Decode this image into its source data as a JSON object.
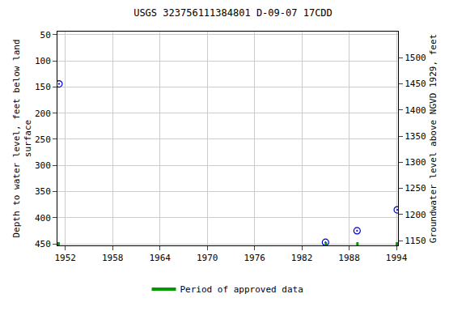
{
  "chart_data": {
    "type": "scatter",
    "title": "USGS 323756111384801 D-09-07 17CDD",
    "ylabel": [
      "Depth to water level, feet below land",
      "surface"
    ],
    "y2label": "Groundwater level above NGVD 1929, feet",
    "xlim": [
      1951,
      1994.2
    ],
    "xticks": [
      1952,
      1958,
      1964,
      1970,
      1976,
      1982,
      1988,
      1994
    ],
    "ylim": [
      453,
      44
    ],
    "yticks": [
      50,
      100,
      150,
      200,
      250,
      300,
      350,
      400,
      450
    ],
    "y2lim": [
      1141,
      1550
    ],
    "y2ticks": [
      1150,
      1200,
      1250,
      1300,
      1350,
      1400,
      1450,
      1500
    ],
    "grid": true,
    "legend": "bottom",
    "series": [
      {
        "type": "scatter",
        "marker": "circle-open-dot",
        "color": "#0000cc",
        "x": [
          1951.2,
          1985.0,
          1989.0,
          1994.1
        ],
        "values": [
          144,
          447,
          425,
          385
        ]
      },
      {
        "name": "Period of approved data",
        "type": "line",
        "line_style": "solid",
        "color": "#009900",
        "x": [
          1951.0,
          1951.3,
          null,
          1984.9,
          1985.2,
          null,
          1988.9,
          1989.2,
          null,
          1993.9,
          1994.2
        ],
        "values": [
          450,
          450,
          null,
          450,
          450,
          null,
          450,
          450,
          null,
          450,
          450
        ]
      }
    ]
  }
}
